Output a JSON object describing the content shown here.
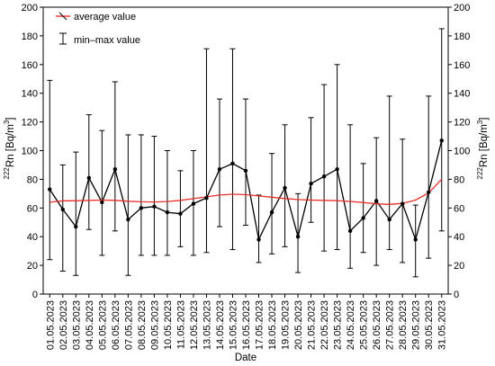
{
  "chart_data": {
    "type": "line",
    "xlabel": "Date",
    "ylabel_left": "Rn [Bq/m",
    "ylabel_isotope": "222",
    "ylabel_unit_exp": "3",
    "ylabel_close": "]",
    "ylim": [
      0,
      200
    ],
    "yticks": [
      0,
      20,
      40,
      60,
      80,
      100,
      120,
      140,
      160,
      180,
      200
    ],
    "grid": false,
    "legend_position": "top-left",
    "legend": {
      "average": "average value",
      "minmax": "min–max value"
    },
    "colors": {
      "average": "#e8302a",
      "data": "#000000"
    },
    "categories": [
      "01.05.2023",
      "02.05.2023",
      "03.05.2023",
      "04.05.2023",
      "05.05.2023",
      "06.05.2023",
      "07.05.2023",
      "08.05.2023",
      "09.05.2023",
      "10.05.2023",
      "11.05.2023",
      "12.05.2023",
      "13.05.2023",
      "14.05.2023",
      "15.05.2023",
      "16.05.2023",
      "17.05.2023",
      "18.05.2023",
      "19.05.2023",
      "20.05.2023",
      "21.05.2023",
      "22.05.2023",
      "23.05.2023",
      "24.05.2023",
      "25.05.2023",
      "26.05.2023",
      "27.05.2023",
      "28.05.2023",
      "29.05.2023",
      "30.05.2023",
      "31.05.2023"
    ],
    "values": [
      73,
      59,
      47,
      81,
      64,
      87,
      52,
      60,
      61,
      57,
      56,
      63,
      67,
      87,
      91,
      86,
      38,
      57,
      74,
      40,
      77,
      82,
      87,
      44,
      53,
      65,
      52,
      63,
      38,
      71,
      107
    ],
    "min": [
      24,
      16,
      13,
      45,
      27,
      44,
      13,
      27,
      27,
      27,
      33,
      27,
      29,
      47,
      31,
      48,
      22,
      28,
      33,
      15,
      50,
      30,
      31,
      18,
      29,
      20,
      31,
      22,
      12,
      25,
      44
    ],
    "max": [
      149,
      90,
      99,
      125,
      114,
      148,
      111,
      111,
      110,
      100,
      86,
      100,
      171,
      136,
      171,
      136,
      69,
      98,
      118,
      70,
      123,
      146,
      160,
      118,
      91,
      109,
      138,
      108,
      62,
      138,
      185
    ],
    "trend": [
      64,
      65,
      65,
      65.3,
      65.5,
      65.3,
      64.7,
      64.3,
      64.2,
      64.5,
      65.3,
      66.5,
      67.8,
      69,
      69.6,
      69.3,
      68.4,
      67.5,
      66.6,
      65.9,
      65.5,
      65.3,
      65.1,
      64.6,
      63.8,
      62.9,
      62.5,
      63.2,
      65.5,
      70.5,
      80
    ]
  }
}
